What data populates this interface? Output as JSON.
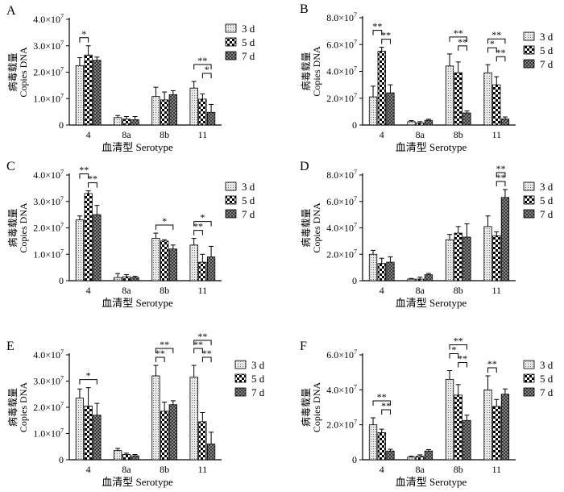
{
  "figure": {
    "ylabel_cn": "病毒载量",
    "ylabel_en": "Copies DNA",
    "xlabel": "血清型  Serotype",
    "categories": [
      "4",
      "8a",
      "8b",
      "11"
    ],
    "legend": [
      "3 d",
      "5 d",
      "7 d"
    ],
    "exp_symbol": "×10",
    "exponent": "7",
    "colors": {
      "bar_fill": "#e9e9e9",
      "ink": "#000000"
    }
  },
  "chart_data": [
    {
      "type": "bar",
      "panel": "A",
      "ylim": [
        0,
        4
      ],
      "yticks": [
        0,
        1,
        2,
        3,
        4
      ],
      "categories": [
        "4",
        "8a",
        "8b",
        "11"
      ],
      "series": [
        {
          "name": "3 d",
          "values": [
            2.25,
            0.28,
            1.08,
            1.4
          ],
          "errors": [
            0.3,
            0.08,
            0.35,
            0.25
          ]
        },
        {
          "name": "5 d",
          "values": [
            2.65,
            0.22,
            0.95,
            0.98
          ],
          "errors": [
            0.35,
            0.1,
            0.3,
            0.2
          ]
        },
        {
          "name": "7 d",
          "values": [
            2.45,
            0.2,
            1.15,
            0.48
          ],
          "errors": [
            0.12,
            0.12,
            0.15,
            0.3
          ]
        }
      ],
      "annotations": [
        {
          "group": 0,
          "from": 0,
          "to": 1,
          "level": 1,
          "label": "*"
        },
        {
          "group": 3,
          "from": 0,
          "to": 2,
          "level": 2,
          "label": "**"
        },
        {
          "group": 3,
          "from": 1,
          "to": 2,
          "level": 1,
          "label": "*"
        }
      ]
    },
    {
      "type": "bar",
      "panel": "B",
      "ylim": [
        0,
        8
      ],
      "yticks": [
        0,
        2,
        4,
        6,
        8
      ],
      "categories": [
        "4",
        "8a",
        "8b",
        "11"
      ],
      "series": [
        {
          "name": "3 d",
          "values": [
            2.1,
            0.25,
            4.4,
            3.9
          ],
          "errors": [
            0.8,
            0.08,
            0.9,
            0.6
          ]
        },
        {
          "name": "5 d",
          "values": [
            5.5,
            0.15,
            3.9,
            3.0
          ],
          "errors": [
            0.3,
            0.1,
            0.8,
            0.6
          ]
        },
        {
          "name": "7 d",
          "values": [
            2.4,
            0.35,
            0.9,
            0.45
          ],
          "errors": [
            0.6,
            0.08,
            0.15,
            0.15
          ]
        }
      ],
      "annotations": [
        {
          "group": 0,
          "from": 0,
          "to": 1,
          "level": 2,
          "label": "**"
        },
        {
          "group": 0,
          "from": 1,
          "to": 2,
          "level": 1,
          "label": "**"
        },
        {
          "group": 2,
          "from": 0,
          "to": 2,
          "level": 2,
          "label": "**"
        },
        {
          "group": 2,
          "from": 1,
          "to": 2,
          "level": 1,
          "label": "**"
        },
        {
          "group": 3,
          "from": 0,
          "to": 2,
          "level": 3,
          "label": "**"
        },
        {
          "group": 3,
          "from": 0,
          "to": 1,
          "level": 2,
          "label": "*"
        },
        {
          "group": 3,
          "from": 1,
          "to": 2,
          "level": 1,
          "label": "**"
        }
      ]
    },
    {
      "type": "bar",
      "panel": "C",
      "ylim": [
        0,
        4
      ],
      "yticks": [
        0,
        1,
        2,
        3,
        4
      ],
      "categories": [
        "4",
        "8a",
        "8b",
        "11"
      ],
      "series": [
        {
          "name": "3 d",
          "values": [
            2.3,
            0.12,
            1.6,
            1.35
          ],
          "errors": [
            0.15,
            0.15,
            0.2,
            0.25
          ]
        },
        {
          "name": "5 d",
          "values": [
            3.3,
            0.15,
            1.5,
            0.7
          ],
          "errors": [
            0.1,
            0.08,
            0.05,
            0.3
          ]
        },
        {
          "name": "7 d",
          "values": [
            2.5,
            0.12,
            1.2,
            0.9
          ],
          "errors": [
            0.35,
            0.05,
            0.15,
            0.4
          ]
        }
      ],
      "annotations": [
        {
          "group": 0,
          "from": 0,
          "to": 1,
          "level": 2,
          "label": "**"
        },
        {
          "group": 0,
          "from": 1,
          "to": 2,
          "level": 1,
          "label": "**"
        },
        {
          "group": 2,
          "from": 0,
          "to": 2,
          "level": 1,
          "label": "*"
        },
        {
          "group": 3,
          "from": 0,
          "to": 2,
          "level": 2,
          "label": "*"
        },
        {
          "group": 3,
          "from": 0,
          "to": 1,
          "level": 1,
          "label": "**"
        }
      ]
    },
    {
      "type": "bar",
      "panel": "D",
      "ylim": [
        0,
        8
      ],
      "yticks": [
        0,
        2,
        4,
        6,
        8
      ],
      "categories": [
        "4",
        "8a",
        "8b",
        "11"
      ],
      "series": [
        {
          "name": "3 d",
          "values": [
            2.0,
            0.12,
            3.1,
            4.1
          ],
          "errors": [
            0.3,
            0.05,
            0.4,
            0.8
          ]
        },
        {
          "name": "5 d",
          "values": [
            1.3,
            0.12,
            3.6,
            3.4
          ],
          "errors": [
            0.4,
            0.15,
            0.5,
            0.3
          ]
        },
        {
          "name": "7 d",
          "values": [
            1.4,
            0.45,
            3.3,
            6.3
          ],
          "errors": [
            0.4,
            0.1,
            1.0,
            0.6
          ]
        }
      ],
      "annotations": [
        {
          "group": 3,
          "from": 1,
          "to": 2,
          "level": 2,
          "label": "**"
        },
        {
          "group": 3,
          "from": 1,
          "to": 2,
          "level": 1,
          "label": "**"
        }
      ]
    },
    {
      "type": "bar",
      "panel": "E",
      "ylim": [
        0,
        4
      ],
      "yticks": [
        0,
        1,
        2,
        3,
        4
      ],
      "categories": [
        "4",
        "8a",
        "8b",
        "11"
      ],
      "series": [
        {
          "name": "3 d",
          "values": [
            2.35,
            0.35,
            3.2,
            3.15
          ],
          "errors": [
            0.35,
            0.08,
            0.4,
            0.45
          ]
        },
        {
          "name": "5 d",
          "values": [
            2.05,
            0.2,
            1.85,
            1.45
          ],
          "errors": [
            0.7,
            0.05,
            0.35,
            0.35
          ]
        },
        {
          "name": "7 d",
          "values": [
            1.7,
            0.15,
            2.1,
            0.6
          ],
          "errors": [
            0.45,
            0.05,
            0.15,
            0.45
          ]
        }
      ],
      "annotations": [
        {
          "group": 0,
          "from": 0,
          "to": 2,
          "level": 1,
          "label": "*"
        },
        {
          "group": 2,
          "from": 0,
          "to": 2,
          "level": 2,
          "label": "**"
        },
        {
          "group": 2,
          "from": 0,
          "to": 1,
          "level": 1,
          "label": "**"
        },
        {
          "group": 3,
          "from": 0,
          "to": 2,
          "level": 3,
          "label": "**"
        },
        {
          "group": 3,
          "from": 0,
          "to": 1,
          "level": 2,
          "label": "**"
        },
        {
          "group": 3,
          "from": 1,
          "to": 2,
          "level": 1,
          "label": "**"
        }
      ]
    },
    {
      "type": "bar",
      "panel": "F",
      "ylim": [
        0,
        6
      ],
      "yticks": [
        0,
        2,
        4,
        6
      ],
      "categories": [
        "4",
        "8a",
        "8b",
        "11"
      ],
      "series": [
        {
          "name": "3 d",
          "values": [
            2.0,
            0.15,
            4.6,
            4.0
          ],
          "errors": [
            0.4,
            0.05,
            0.5,
            0.8
          ]
        },
        {
          "name": "5 d",
          "values": [
            1.55,
            0.2,
            3.7,
            3.05
          ],
          "errors": [
            0.2,
            0.08,
            0.6,
            0.4
          ]
        },
        {
          "name": "7 d",
          "values": [
            0.5,
            0.5,
            2.25,
            3.75
          ],
          "errors": [
            0.1,
            0.08,
            0.3,
            0.3
          ]
        }
      ],
      "annotations": [
        {
          "group": 0,
          "from": 0,
          "to": 2,
          "level": 2,
          "label": "**"
        },
        {
          "group": 0,
          "from": 1,
          "to": 2,
          "level": 1,
          "label": "**"
        },
        {
          "group": 2,
          "from": 0,
          "to": 2,
          "level": 3,
          "label": "**"
        },
        {
          "group": 2,
          "from": 0,
          "to": 1,
          "level": 2,
          "label": "*"
        },
        {
          "group": 2,
          "from": 1,
          "to": 2,
          "level": 1,
          "label": "**"
        },
        {
          "group": 3,
          "from": 0,
          "to": 1,
          "level": 1,
          "label": "**"
        }
      ]
    }
  ]
}
